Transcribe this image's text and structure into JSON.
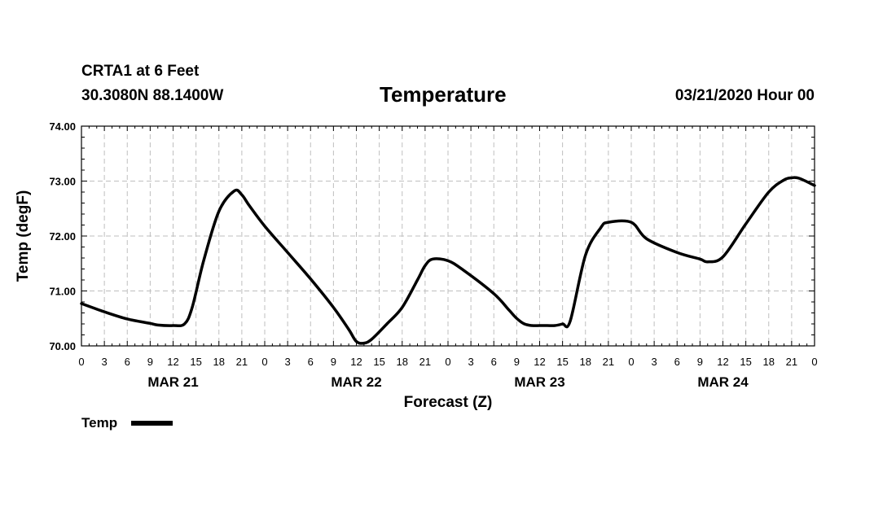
{
  "header": {
    "station": "CRTA1 at 6 Feet",
    "coords": "30.3080N 88.1400W",
    "date": "03/21/2020 Hour 00"
  },
  "chart_data": {
    "type": "line",
    "title": "Temperature",
    "xlabel": "Forecast (Z)",
    "ylabel": "Temp (degF)",
    "ylim": [
      70.0,
      74.0
    ],
    "yticks": [
      "70.00",
      "71.00",
      "72.00",
      "73.00",
      "74.00"
    ],
    "xlim_hours": [
      0,
      96
    ],
    "xtick_labels": [
      "0",
      "3",
      "6",
      "9",
      "12",
      "15",
      "18",
      "21",
      "0",
      "3",
      "6",
      "9",
      "12",
      "15",
      "18",
      "21",
      "0",
      "3",
      "6",
      "9",
      "12",
      "15",
      "18",
      "21",
      "0",
      "3",
      "6",
      "9",
      "12",
      "15",
      "18",
      "21",
      "0"
    ],
    "day_labels": [
      {
        "label": "MAR 21",
        "hour": 12
      },
      {
        "label": "MAR 22",
        "hour": 36
      },
      {
        "label": "MAR 23",
        "hour": 60
      },
      {
        "label": "MAR 24",
        "hour": 84
      }
    ],
    "grid": true,
    "legend_position": "bottom-left",
    "series": [
      {
        "name": "Temp",
        "color": "#000000",
        "x_hours": [
          0,
          3,
          6,
          9,
          10,
          12,
          13.5,
          14.5,
          16,
          18,
          20,
          21,
          22,
          24,
          27,
          30,
          33,
          35,
          36,
          37,
          38,
          40,
          42,
          44,
          45,
          46,
          48,
          50,
          54,
          56,
          57,
          58,
          59,
          60,
          61,
          62,
          63,
          64,
          66,
          68,
          69,
          72,
          74,
          78,
          81,
          82,
          84,
          87,
          90,
          92,
          93,
          94,
          96
        ],
        "values": [
          70.77,
          70.62,
          70.49,
          70.41,
          70.38,
          70.37,
          70.4,
          70.7,
          71.55,
          72.45,
          72.82,
          72.75,
          72.55,
          72.18,
          71.7,
          71.22,
          70.7,
          70.3,
          70.08,
          70.05,
          70.12,
          70.4,
          70.7,
          71.2,
          71.46,
          71.58,
          71.55,
          71.38,
          70.95,
          70.65,
          70.5,
          70.4,
          70.37,
          70.37,
          70.37,
          70.37,
          70.4,
          70.45,
          71.65,
          72.15,
          72.25,
          72.25,
          71.95,
          71.7,
          71.58,
          71.53,
          71.62,
          72.22,
          72.8,
          73.02,
          73.06,
          73.05,
          72.92
        ]
      }
    ]
  }
}
